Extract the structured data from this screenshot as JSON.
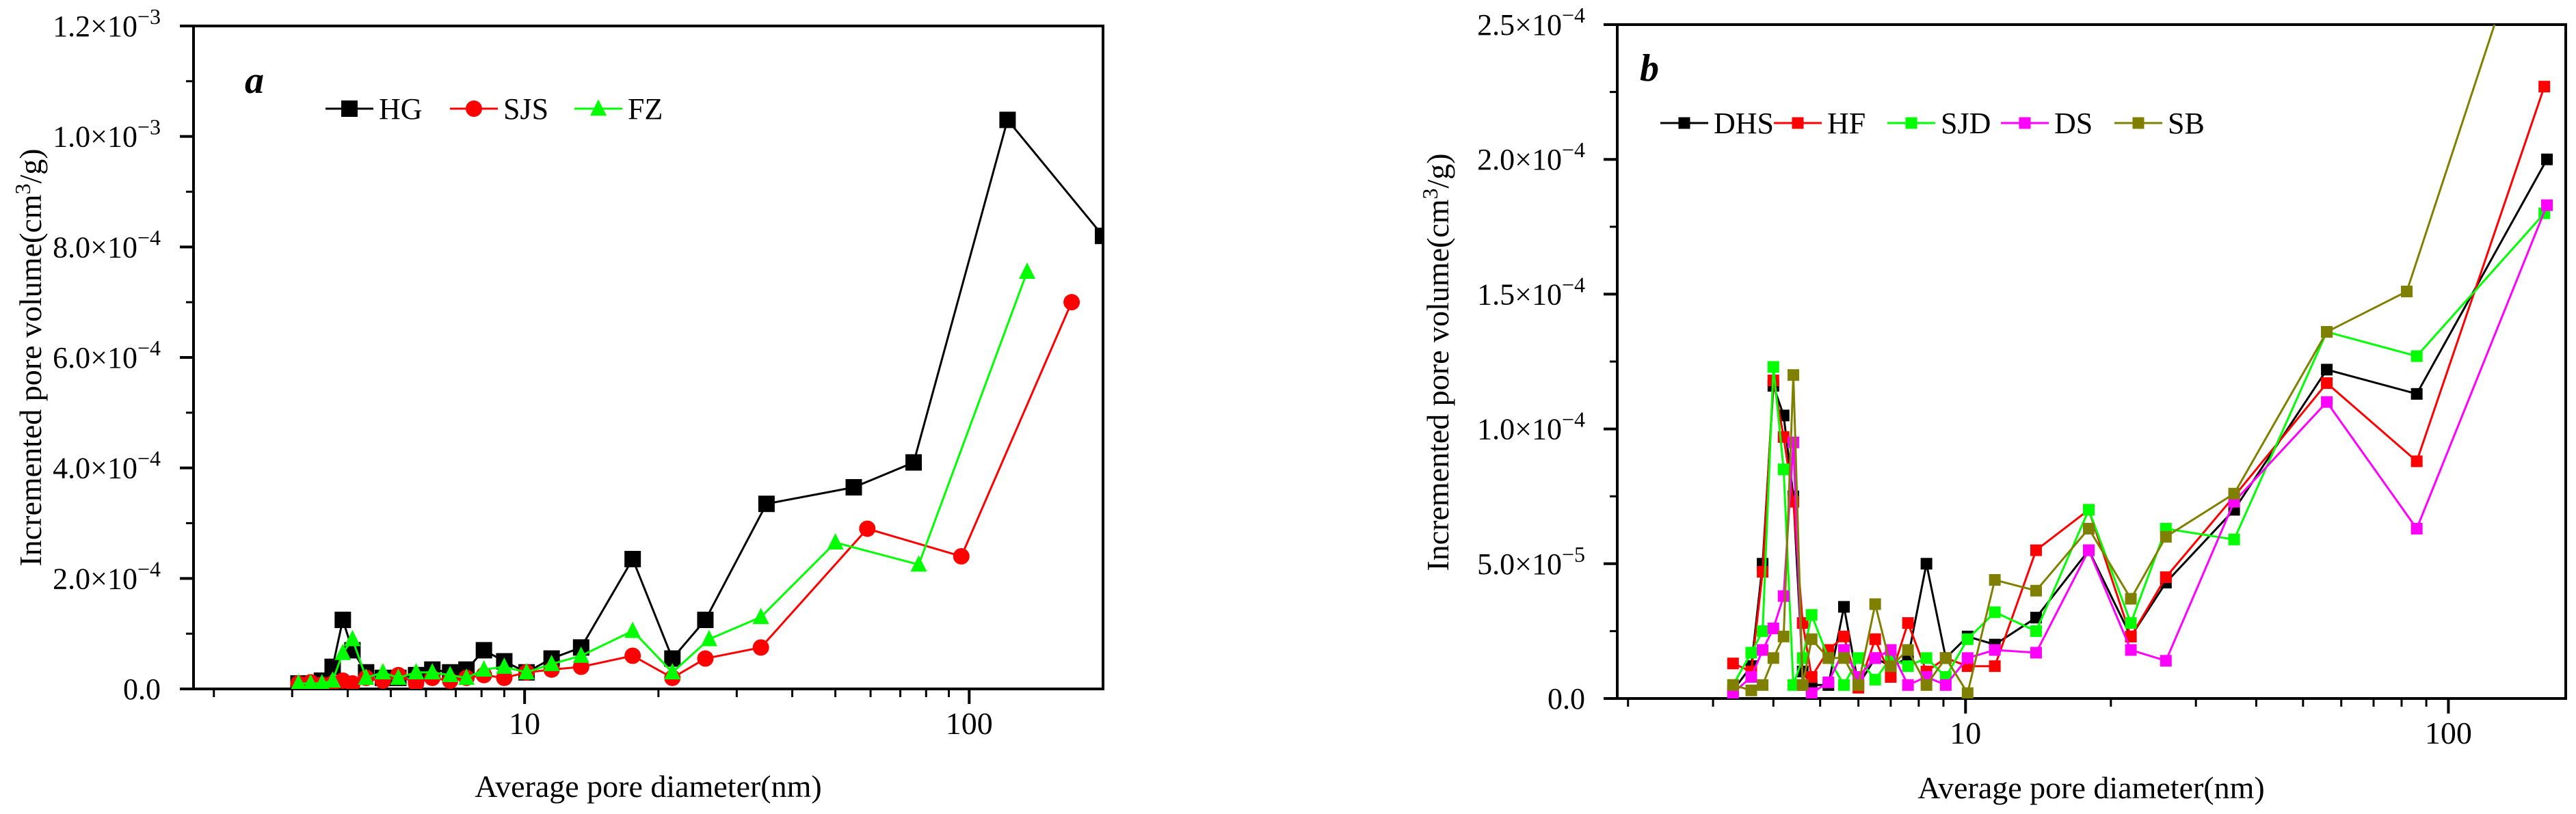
{
  "chart_data": [
    {
      "type": "line",
      "panel_label": "a",
      "xlabel": "Average pore diameter(nm)",
      "ylabel_main": "Incremented pore volume(cm",
      "ylabel_sup": "3",
      "ylabel_tail": "/g)",
      "xscale": "log",
      "xlim": [
        1.8,
        200
      ],
      "ylim": [
        0,
        0.0012
      ],
      "x_ticks": [
        10,
        100
      ],
      "x_tick_labels": [
        "10",
        "100"
      ],
      "y_ticks": [
        0,
        0.0002,
        0.0004,
        0.0006,
        0.0008,
        0.001,
        0.0012
      ],
      "y_tick_labels": [
        {
          "base": "0.0",
          "exp": ""
        },
        {
          "base": "2.0×10",
          "exp": "−4"
        },
        {
          "base": "4.0×10",
          "exp": "−4"
        },
        {
          "base": "6.0×10",
          "exp": "−4"
        },
        {
          "base": "8.0×10",
          "exp": "−4"
        },
        {
          "base": "1.0×10",
          "exp": "−3"
        },
        {
          "base": "1.2×10",
          "exp": "−3"
        }
      ],
      "legend_position": "top-left",
      "series": [
        {
          "name": "HG",
          "color": "#000000",
          "marker": "square",
          "x": [
            3.1,
            3.3,
            3.5,
            3.7,
            3.9,
            4.1,
            4.4,
            4.8,
            5.2,
            5.7,
            6.2,
            6.8,
            7.4,
            8.1,
            9.0,
            10.1,
            11.5,
            13.4,
            17.5,
            21.5,
            25.5,
            35,
            55,
            75,
            122,
            200
          ],
          "y": [
            1e-05,
            8e-06,
            1.5e-05,
            4e-05,
            0.000125,
            7e-05,
            3e-05,
            2e-05,
            2e-05,
            2.5e-05,
            3.5e-05,
            3e-05,
            3.5e-05,
            7e-05,
            5e-05,
            3e-05,
            5.5e-05,
            7.5e-05,
            0.000235,
            5.5e-05,
            0.000125,
            0.000335,
            0.000365,
            0.00041,
            0.00103,
            0.00082
          ]
        },
        {
          "name": "SJS",
          "color": "#ff0000",
          "marker": "circle",
          "x": [
            3.1,
            3.3,
            3.5,
            3.7,
            3.9,
            4.1,
            4.4,
            4.8,
            5.2,
            5.7,
            6.2,
            6.8,
            7.4,
            8.1,
            9.0,
            10.1,
            11.5,
            13.4,
            17.5,
            21.5,
            25.5,
            34,
            59,
            96,
            170
          ],
          "y": [
            1e-05,
            1.2e-05,
            8e-06,
            1e-05,
            1.5e-05,
            1e-05,
            2e-05,
            1.5e-05,
            2.5e-05,
            1e-05,
            2e-05,
            1.5e-05,
            2e-05,
            2.5e-05,
            2e-05,
            3e-05,
            3.5e-05,
            4e-05,
            6e-05,
            2e-05,
            5.5e-05,
            7.5e-05,
            0.00029,
            0.00024,
            0.0007
          ]
        },
        {
          "name": "FZ",
          "color": "#00ff00",
          "marker": "triangle",
          "x": [
            3.1,
            3.3,
            3.5,
            3.7,
            3.9,
            4.1,
            4.4,
            4.8,
            5.2,
            5.7,
            6.2,
            6.8,
            7.4,
            8.1,
            9.0,
            10.1,
            11.5,
            13.4,
            17.5,
            21.5,
            26,
            34,
            50,
            77,
            135
          ],
          "y": [
            1e-05,
            1e-05,
            1e-05,
            1.5e-05,
            6.5e-05,
            9e-05,
            2e-05,
            3e-05,
            2e-05,
            3e-05,
            3e-05,
            2.5e-05,
            2e-05,
            3.5e-05,
            4e-05,
            3e-05,
            4.5e-05,
            6e-05,
            0.000105,
            3e-05,
            9e-05,
            0.00013,
            0.000265,
            0.000225,
            0.000755
          ]
        }
      ]
    },
    {
      "type": "line",
      "panel_label": "b",
      "xlabel": "Average pore diameter(nm)",
      "ylabel_main": "Incremented pore volume(cm",
      "ylabel_sup": "3",
      "ylabel_tail": "/g)",
      "xscale": "log",
      "xlim": [
        1.9,
        175
      ],
      "ylim": [
        0,
        0.00025
      ],
      "x_ticks": [
        10,
        100
      ],
      "x_tick_labels": [
        "10",
        "100"
      ],
      "y_ticks": [
        0,
        5e-05,
        0.0001,
        0.00015,
        0.0002,
        0.00025
      ],
      "y_tick_labels": [
        {
          "base": "0.0",
          "exp": ""
        },
        {
          "base": "5.0×10",
          "exp": "−5"
        },
        {
          "base": "1.0×10",
          "exp": "−4"
        },
        {
          "base": "1.5×10",
          "exp": "−4"
        },
        {
          "base": "2.0×10",
          "exp": "−4"
        },
        {
          "base": "2.5×10",
          "exp": "−4"
        }
      ],
      "legend_position": "top-left",
      "series": [
        {
          "name": "DHS",
          "color": "#000000",
          "marker": "square",
          "x": [
            3.3,
            3.6,
            3.8,
            4.0,
            4.2,
            4.4,
            4.6,
            4.8,
            5.2,
            5.6,
            6.0,
            6.5,
            7.0,
            7.6,
            8.3,
            9.1,
            10.1,
            11.5,
            14,
            18,
            22,
            26,
            36,
            56,
            86,
            160
          ],
          "y": [
            3e-06,
            1.2e-05,
            5e-05,
            0.000116,
            0.000105,
            7.5e-05,
            1e-05,
            5e-06,
            5e-06,
            3.4e-05,
            5e-06,
            1.5e-05,
            1.2e-05,
            1.5e-05,
            5e-05,
            1.5e-05,
            2.3e-05,
            2e-05,
            3e-05,
            5.5e-05,
            2.3e-05,
            4.3e-05,
            7e-05,
            0.000122,
            0.000113,
            0.0002
          ]
        },
        {
          "name": "HF",
          "color": "#ff0000",
          "marker": "square",
          "x": [
            3.3,
            3.6,
            3.8,
            4.0,
            4.2,
            4.4,
            4.6,
            4.8,
            5.2,
            5.6,
            6.0,
            6.5,
            7.0,
            7.6,
            8.3,
            9.1,
            10.1,
            11.5,
            14,
            18,
            22,
            26,
            36,
            56,
            86,
            158
          ],
          "y": [
            1.3e-05,
            1e-05,
            4.7e-05,
            0.000118,
            9.7e-05,
            7.3e-05,
            2.8e-05,
            8e-06,
            1.8e-05,
            2.3e-05,
            4e-06,
            2.2e-05,
            8e-06,
            2.8e-05,
            1e-05,
            1.5e-05,
            1.2e-05,
            1.2e-05,
            5.5e-05,
            7e-05,
            2.3e-05,
            4.5e-05,
            7.5e-05,
            0.000117,
            8.8e-05,
            0.000227
          ]
        },
        {
          "name": "SJD",
          "color": "#00ff00",
          "marker": "square",
          "x": [
            3.3,
            3.6,
            3.8,
            4.0,
            4.2,
            4.4,
            4.6,
            4.8,
            5.2,
            5.6,
            6.0,
            6.5,
            7.0,
            7.6,
            8.3,
            9.1,
            10.1,
            11.5,
            14,
            18,
            22,
            26,
            36,
            56,
            86,
            158
          ],
          "y": [
            5e-06,
            1.7e-05,
            2.5e-05,
            0.000123,
            8.5e-05,
            5e-06,
            1.5e-05,
            3.1e-05,
            1.5e-05,
            5e-06,
            1.5e-05,
            7e-06,
            1.5e-05,
            1.2e-05,
            1.5e-05,
            8e-06,
            2.2e-05,
            3.2e-05,
            2.5e-05,
            7e-05,
            2.8e-05,
            6.3e-05,
            5.9e-05,
            0.000136,
            0.000127,
            0.00018
          ]
        },
        {
          "name": "DS",
          "color": "#ff00ff",
          "marker": "square",
          "x": [
            3.3,
            3.6,
            3.8,
            4.0,
            4.2,
            4.4,
            4.6,
            4.8,
            5.2,
            5.6,
            6.0,
            6.5,
            7.0,
            7.6,
            8.3,
            9.1,
            10.1,
            11.5,
            14,
            18,
            22,
            26,
            36,
            56,
            86,
            160
          ],
          "y": [
            2e-06,
            8e-06,
            1.8e-05,
            2.6e-05,
            3.8e-05,
            9.5e-05,
            5e-06,
            2e-06,
            6e-06,
            1.8e-05,
            8e-06,
            1.5e-05,
            1.8e-05,
            5e-06,
            8e-06,
            5e-06,
            1.5e-05,
            1.8e-05,
            1.7e-05,
            5.5e-05,
            1.8e-05,
            1.4e-05,
            7.3e-05,
            0.00011,
            6.3e-05,
            0.000183
          ]
        },
        {
          "name": "SB",
          "color": "#808000",
          "marker": "square",
          "x": [
            3.3,
            3.6,
            3.8,
            4.0,
            4.2,
            4.4,
            4.6,
            4.8,
            5.2,
            5.6,
            6.0,
            6.5,
            7.0,
            7.6,
            8.3,
            9.1,
            10.1,
            11.5,
            14,
            18,
            22,
            26,
            36,
            56,
            82,
            130
          ],
          "y": [
            5e-06,
            3e-06,
            5e-06,
            1.5e-05,
            2.3e-05,
            0.00012,
            5e-06,
            2.2e-05,
            1.5e-05,
            1.5e-05,
            5e-06,
            3.5e-05,
            1.2e-05,
            1.8e-05,
            5e-06,
            1.5e-05,
            2e-06,
            4.4e-05,
            4e-05,
            6.3e-05,
            3.7e-05,
            6e-05,
            7.6e-05,
            0.000136,
            0.000151,
            0.00026
          ]
        }
      ]
    }
  ]
}
